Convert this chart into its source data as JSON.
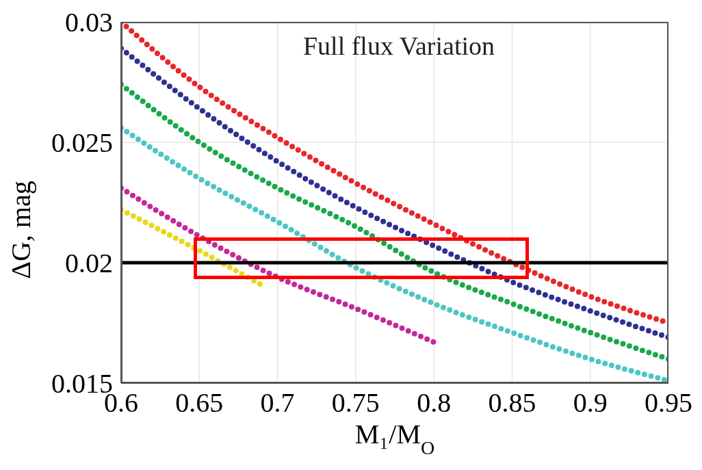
{
  "chart_data": {
    "type": "line",
    "title": "Full flux Variation",
    "xlabel": "M₁/M$_{O}$",
    "ylabel": "ΔG, mag",
    "xlim": [
      0.6,
      0.95
    ],
    "xticks": [
      0.6,
      0.65,
      0.7,
      0.75,
      0.8,
      0.85,
      0.9,
      0.95
    ],
    "ylim": [
      0.015,
      0.03
    ],
    "yticks": [
      0.015,
      0.02,
      0.025,
      0.03
    ],
    "grid": true,
    "marker": "none",
    "line_style": "dotted",
    "ref_lines": [
      {
        "axis": "y",
        "value": 0.02,
        "color": "#000000"
      }
    ],
    "series": [
      {
        "color": "#e8262a",
        "x": [
          0.6,
          0.65,
          0.7,
          0.75,
          0.8,
          0.85,
          0.9,
          0.95
        ],
        "values": [
          0.03,
          0.0273,
          0.0252,
          0.0233,
          0.0216,
          0.02,
          0.0186,
          0.0175
        ]
      },
      {
        "color": "#2e3192",
        "x": [
          0.6,
          0.65,
          0.7,
          0.75,
          0.8,
          0.85,
          0.9,
          0.95
        ],
        "values": [
          0.0289,
          0.0264,
          0.0242,
          0.0223,
          0.0207,
          0.0192,
          0.018,
          0.0169
        ]
      },
      {
        "color": "#1aa84a",
        "x": [
          0.6,
          0.65,
          0.7,
          0.75,
          0.8,
          0.85,
          0.9,
          0.95
        ],
        "values": [
          0.0274,
          0.025,
          0.0231,
          0.0215,
          0.0196,
          0.0183,
          0.0171,
          0.016
        ]
      },
      {
        "color": "#4cc6c4",
        "x": [
          0.6,
          0.65,
          0.7,
          0.75,
          0.8,
          0.85,
          0.9,
          0.95
        ],
        "values": [
          0.0256,
          0.0235,
          0.0217,
          0.0198,
          0.0183,
          0.0171,
          0.016,
          0.0151
        ]
      },
      {
        "color": "#c4289c",
        "x": [
          0.6,
          0.65,
          0.7,
          0.75,
          0.8
        ],
        "values": [
          0.0231,
          0.0211,
          0.0194,
          0.0181,
          0.0167
        ]
      },
      {
        "color": "#e8d81a",
        "x": [
          0.6,
          0.65,
          0.692
        ],
        "values": [
          0.0222,
          0.0205,
          0.019
        ]
      }
    ]
  }
}
